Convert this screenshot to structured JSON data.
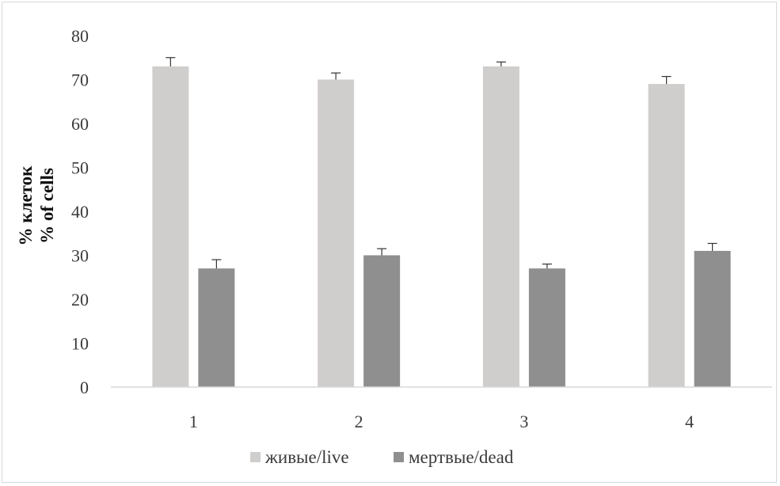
{
  "chart_data": {
    "type": "bar",
    "title": "",
    "xlabel": "",
    "ylabel_lines": [
      "% клеток",
      "% of cells"
    ],
    "categories": [
      "1",
      "2",
      "3",
      "4"
    ],
    "series": [
      {
        "name": "живые/live",
        "values": [
          73,
          70,
          73,
          69
        ],
        "errors": [
          2,
          1.5,
          1,
          1.7
        ],
        "color": "#d0cecd"
      },
      {
        "name": "мертвые/dead",
        "values": [
          27,
          30,
          27,
          31
        ],
        "errors": [
          2,
          1.5,
          1,
          1.7
        ],
        "color": "#8f8f8f"
      }
    ],
    "ylim": [
      0,
      80
    ],
    "yticks": [
      "0",
      "10",
      "20",
      "30",
      "40",
      "50",
      "60",
      "70",
      "80"
    ],
    "grid": false,
    "legend_position": "bottom"
  }
}
